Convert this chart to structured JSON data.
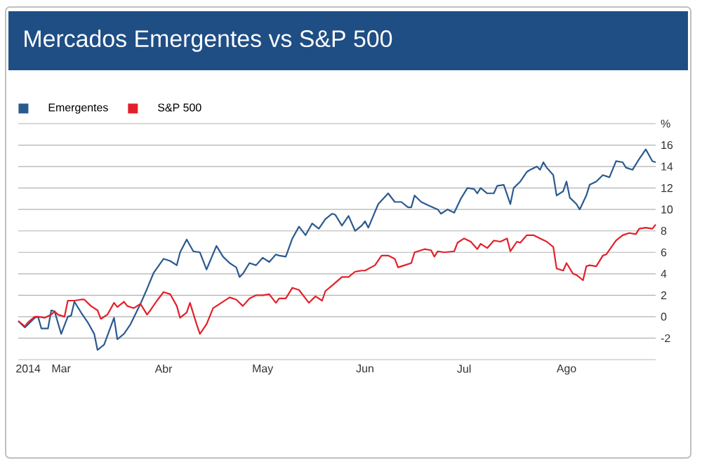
{
  "chart_data": {
    "type": "line",
    "title": "Mercados Emergentes vs S&P 500",
    "xlim": [
      "2014-02-16",
      "2014-08-28"
    ],
    "xticks": [
      {
        "value": "2014-02-19",
        "label": "2014"
      },
      {
        "value": "2014-03-01",
        "label": "Mar"
      },
      {
        "value": "2014-04-01",
        "label": "Abr"
      },
      {
        "value": "2014-05-01",
        "label": "May"
      },
      {
        "value": "2014-06-01",
        "label": "Jun"
      },
      {
        "value": "2014-07-01",
        "label": "Jul"
      },
      {
        "value": "2014-08-01",
        "label": "Ago"
      }
    ],
    "ylim": [
      -4,
      18
    ],
    "yticks": [
      -2,
      0,
      2,
      4,
      6,
      8,
      10,
      12,
      14,
      16,
      {
        "value": 18,
        "label": "%"
      }
    ],
    "grid": "y",
    "legend": "top left",
    "marker": "none",
    "line_style": "solid",
    "series": [
      {
        "name": "Emergentes",
        "color": "#2b5a8f",
        "x": [
          "2014-02-16",
          "2014-02-18",
          "2014-02-19",
          "2014-02-21",
          "2014-02-22",
          "2014-02-23",
          "2014-02-25",
          "2014-02-26",
          "2014-02-27",
          "2014-03-01",
          "2014-03-03",
          "2014-03-04",
          "2014-03-05",
          "2014-03-07",
          "2014-03-09",
          "2014-03-11",
          "2014-03-12",
          "2014-03-14",
          "2014-03-17",
          "2014-03-18",
          "2014-03-20",
          "2014-03-22",
          "2014-03-25",
          "2014-03-27",
          "2014-03-29",
          "2014-04-01",
          "2014-04-03",
          "2014-04-05",
          "2014-04-06",
          "2014-04-08",
          "2014-04-10",
          "2014-04-12",
          "2014-04-14",
          "2014-04-17",
          "2014-04-19",
          "2014-04-21",
          "2014-04-23",
          "2014-04-24",
          "2014-04-25",
          "2014-04-27",
          "2014-04-29",
          "2014-05-01",
          "2014-05-03",
          "2014-05-05",
          "2014-05-06",
          "2014-05-08",
          "2014-05-10",
          "2014-05-12",
          "2014-05-14",
          "2014-05-16",
          "2014-05-18",
          "2014-05-20",
          "2014-05-22",
          "2014-05-23",
          "2014-05-25",
          "2014-05-27",
          "2014-05-29",
          "2014-05-31",
          "2014-06-01",
          "2014-06-02",
          "2014-06-05",
          "2014-06-08",
          "2014-06-10",
          "2014-06-12",
          "2014-06-14",
          "2014-06-15",
          "2014-06-16",
          "2014-06-18",
          "2014-06-20",
          "2014-06-23",
          "2014-06-24",
          "2014-06-26",
          "2014-06-28",
          "2014-06-30",
          "2014-07-02",
          "2014-07-04",
          "2014-07-05",
          "2014-07-06",
          "2014-07-08",
          "2014-07-10",
          "2014-07-11",
          "2014-07-13",
          "2014-07-15",
          "2014-07-16",
          "2014-07-18",
          "2014-07-20",
          "2014-07-21",
          "2014-07-23",
          "2014-07-24",
          "2014-07-25",
          "2014-07-26",
          "2014-07-28",
          "2014-07-29",
          "2014-07-31",
          "2014-08-01",
          "2014-08-02",
          "2014-08-04",
          "2014-08-05",
          "2014-08-07",
          "2014-08-08",
          "2014-08-10",
          "2014-08-12",
          "2014-08-14",
          "2014-08-16",
          "2014-08-18",
          "2014-08-19",
          "2014-08-21",
          "2014-08-23",
          "2014-08-25",
          "2014-08-27",
          "2014-08-28"
        ],
        "values": [
          -0.4,
          -1.0,
          -0.7,
          -0.1,
          0,
          -1.1,
          -1.1,
          0.6,
          0.5,
          -1.6,
          0,
          0.1,
          1.4,
          0.4,
          -0.5,
          -1.6,
          -3.1,
          -2.6,
          -0.1,
          -2.1,
          -1.6,
          -0.7,
          1.2,
          2.6,
          4.1,
          5.4,
          5.2,
          4.8,
          6.0,
          7.2,
          6.1,
          6.0,
          4.4,
          6.6,
          5.6,
          5.0,
          4.6,
          3.7,
          4.0,
          5.0,
          4.8,
          5.5,
          5.1,
          5.8,
          5.7,
          5.6,
          7.3,
          8.4,
          7.6,
          8.7,
          8.2,
          9.1,
          9.6,
          9.5,
          8.5,
          9.4,
          8.0,
          8.5,
          8.9,
          8.3,
          10.5,
          11.5,
          10.7,
          10.7,
          10.2,
          10.2,
          11.3,
          10.7,
          10.4,
          10.0,
          9.6,
          10.0,
          9.7,
          11.0,
          12.0,
          11.9,
          11.5,
          12.0,
          11.5,
          11.5,
          12.2,
          12.3,
          10.5,
          12.0,
          12.6,
          13.5,
          13.7,
          14.0,
          13.7,
          14.4,
          13.9,
          13.2,
          11.3,
          11.7,
          12.6,
          11.1,
          10.5,
          10.0,
          11.3,
          12.3,
          12.6,
          13.2,
          13.0,
          14.5,
          14.4,
          13.9,
          13.7,
          14.7,
          15.6,
          14.5,
          14.4
        ]
      },
      {
        "name": "S&P 500",
        "color": "#e3202a",
        "x": [
          "2014-02-16",
          "2014-02-18",
          "2014-02-19",
          "2014-02-21",
          "2014-02-22",
          "2014-02-24",
          "2014-02-26",
          "2014-02-27",
          "2014-02-28",
          "2014-03-02",
          "2014-03-03",
          "2014-03-05",
          "2014-03-07",
          "2014-03-08",
          "2014-03-10",
          "2014-03-12",
          "2014-03-13",
          "2014-03-15",
          "2014-03-17",
          "2014-03-18",
          "2014-03-20",
          "2014-03-21",
          "2014-03-23",
          "2014-03-25",
          "2014-03-27",
          "2014-03-28",
          "2014-03-30",
          "2014-04-01",
          "2014-04-03",
          "2014-04-05",
          "2014-04-06",
          "2014-04-08",
          "2014-04-09",
          "2014-04-11",
          "2014-04-12",
          "2014-04-14",
          "2014-04-16",
          "2014-04-18",
          "2014-04-21",
          "2014-04-23",
          "2014-04-25",
          "2014-04-27",
          "2014-04-29",
          "2014-05-01",
          "2014-05-03",
          "2014-05-05",
          "2014-05-06",
          "2014-05-08",
          "2014-05-10",
          "2014-05-12",
          "2014-05-15",
          "2014-05-17",
          "2014-05-19",
          "2014-05-20",
          "2014-05-22",
          "2014-05-25",
          "2014-05-27",
          "2014-05-29",
          "2014-05-31",
          "2014-06-01",
          "2014-06-04",
          "2014-06-06",
          "2014-06-08",
          "2014-06-10",
          "2014-06-11",
          "2014-06-13",
          "2014-06-15",
          "2014-06-16",
          "2014-06-19",
          "2014-06-21",
          "2014-06-22",
          "2014-06-23",
          "2014-06-25",
          "2014-06-28",
          "2014-06-29",
          "2014-07-01",
          "2014-07-03",
          "2014-07-05",
          "2014-07-06",
          "2014-07-08",
          "2014-07-10",
          "2014-07-12",
          "2014-07-14",
          "2014-07-15",
          "2014-07-17",
          "2014-07-18",
          "2014-07-20",
          "2014-07-22",
          "2014-07-24",
          "2014-07-26",
          "2014-07-28",
          "2014-07-29",
          "2014-07-31",
          "2014-08-01",
          "2014-08-03",
          "2014-08-04",
          "2014-08-06",
          "2014-08-07",
          "2014-08-08",
          "2014-08-10",
          "2014-08-12",
          "2014-08-13",
          "2014-08-16",
          "2014-08-18",
          "2014-08-20",
          "2014-08-22",
          "2014-08-23",
          "2014-08-25",
          "2014-08-27",
          "2014-08-28"
        ],
        "values": [
          -0.4,
          -0.9,
          -0.5,
          0,
          0,
          -0.1,
          0.2,
          0.5,
          0.2,
          0,
          1.5,
          1.5,
          1.6,
          1.6,
          1.0,
          0.6,
          -0.2,
          0.2,
          1.3,
          0.9,
          1.4,
          1.0,
          0.8,
          1.2,
          0.2,
          0.6,
          1.5,
          2.3,
          2.1,
          1.0,
          -0.1,
          0.4,
          1.3,
          -0.7,
          -1.6,
          -0.7,
          0.8,
          1.2,
          1.8,
          1.6,
          1.0,
          1.7,
          2.0,
          2.0,
          2.1,
          1.3,
          1.7,
          1.7,
          2.7,
          2.5,
          1.3,
          1.9,
          1.5,
          2.4,
          2.9,
          3.7,
          3.7,
          4.2,
          4.3,
          4.3,
          4.8,
          5.7,
          5.7,
          5.4,
          4.6,
          4.8,
          5.0,
          6.0,
          6.3,
          6.2,
          5.6,
          6.1,
          6.0,
          6.1,
          6.9,
          7.3,
          7.0,
          6.3,
          6.8,
          6.4,
          7.1,
          7.0,
          7.3,
          6.1,
          7.0,
          6.9,
          7.6,
          7.6,
          7.3,
          7.0,
          6.5,
          4.5,
          4.3,
          5.0,
          4.0,
          3.9,
          3.4,
          4.7,
          4.8,
          4.7,
          5.7,
          5.8,
          7.1,
          7.6,
          7.8,
          7.7,
          8.2,
          8.3,
          8.2,
          8.6
        ]
      }
    ]
  }
}
